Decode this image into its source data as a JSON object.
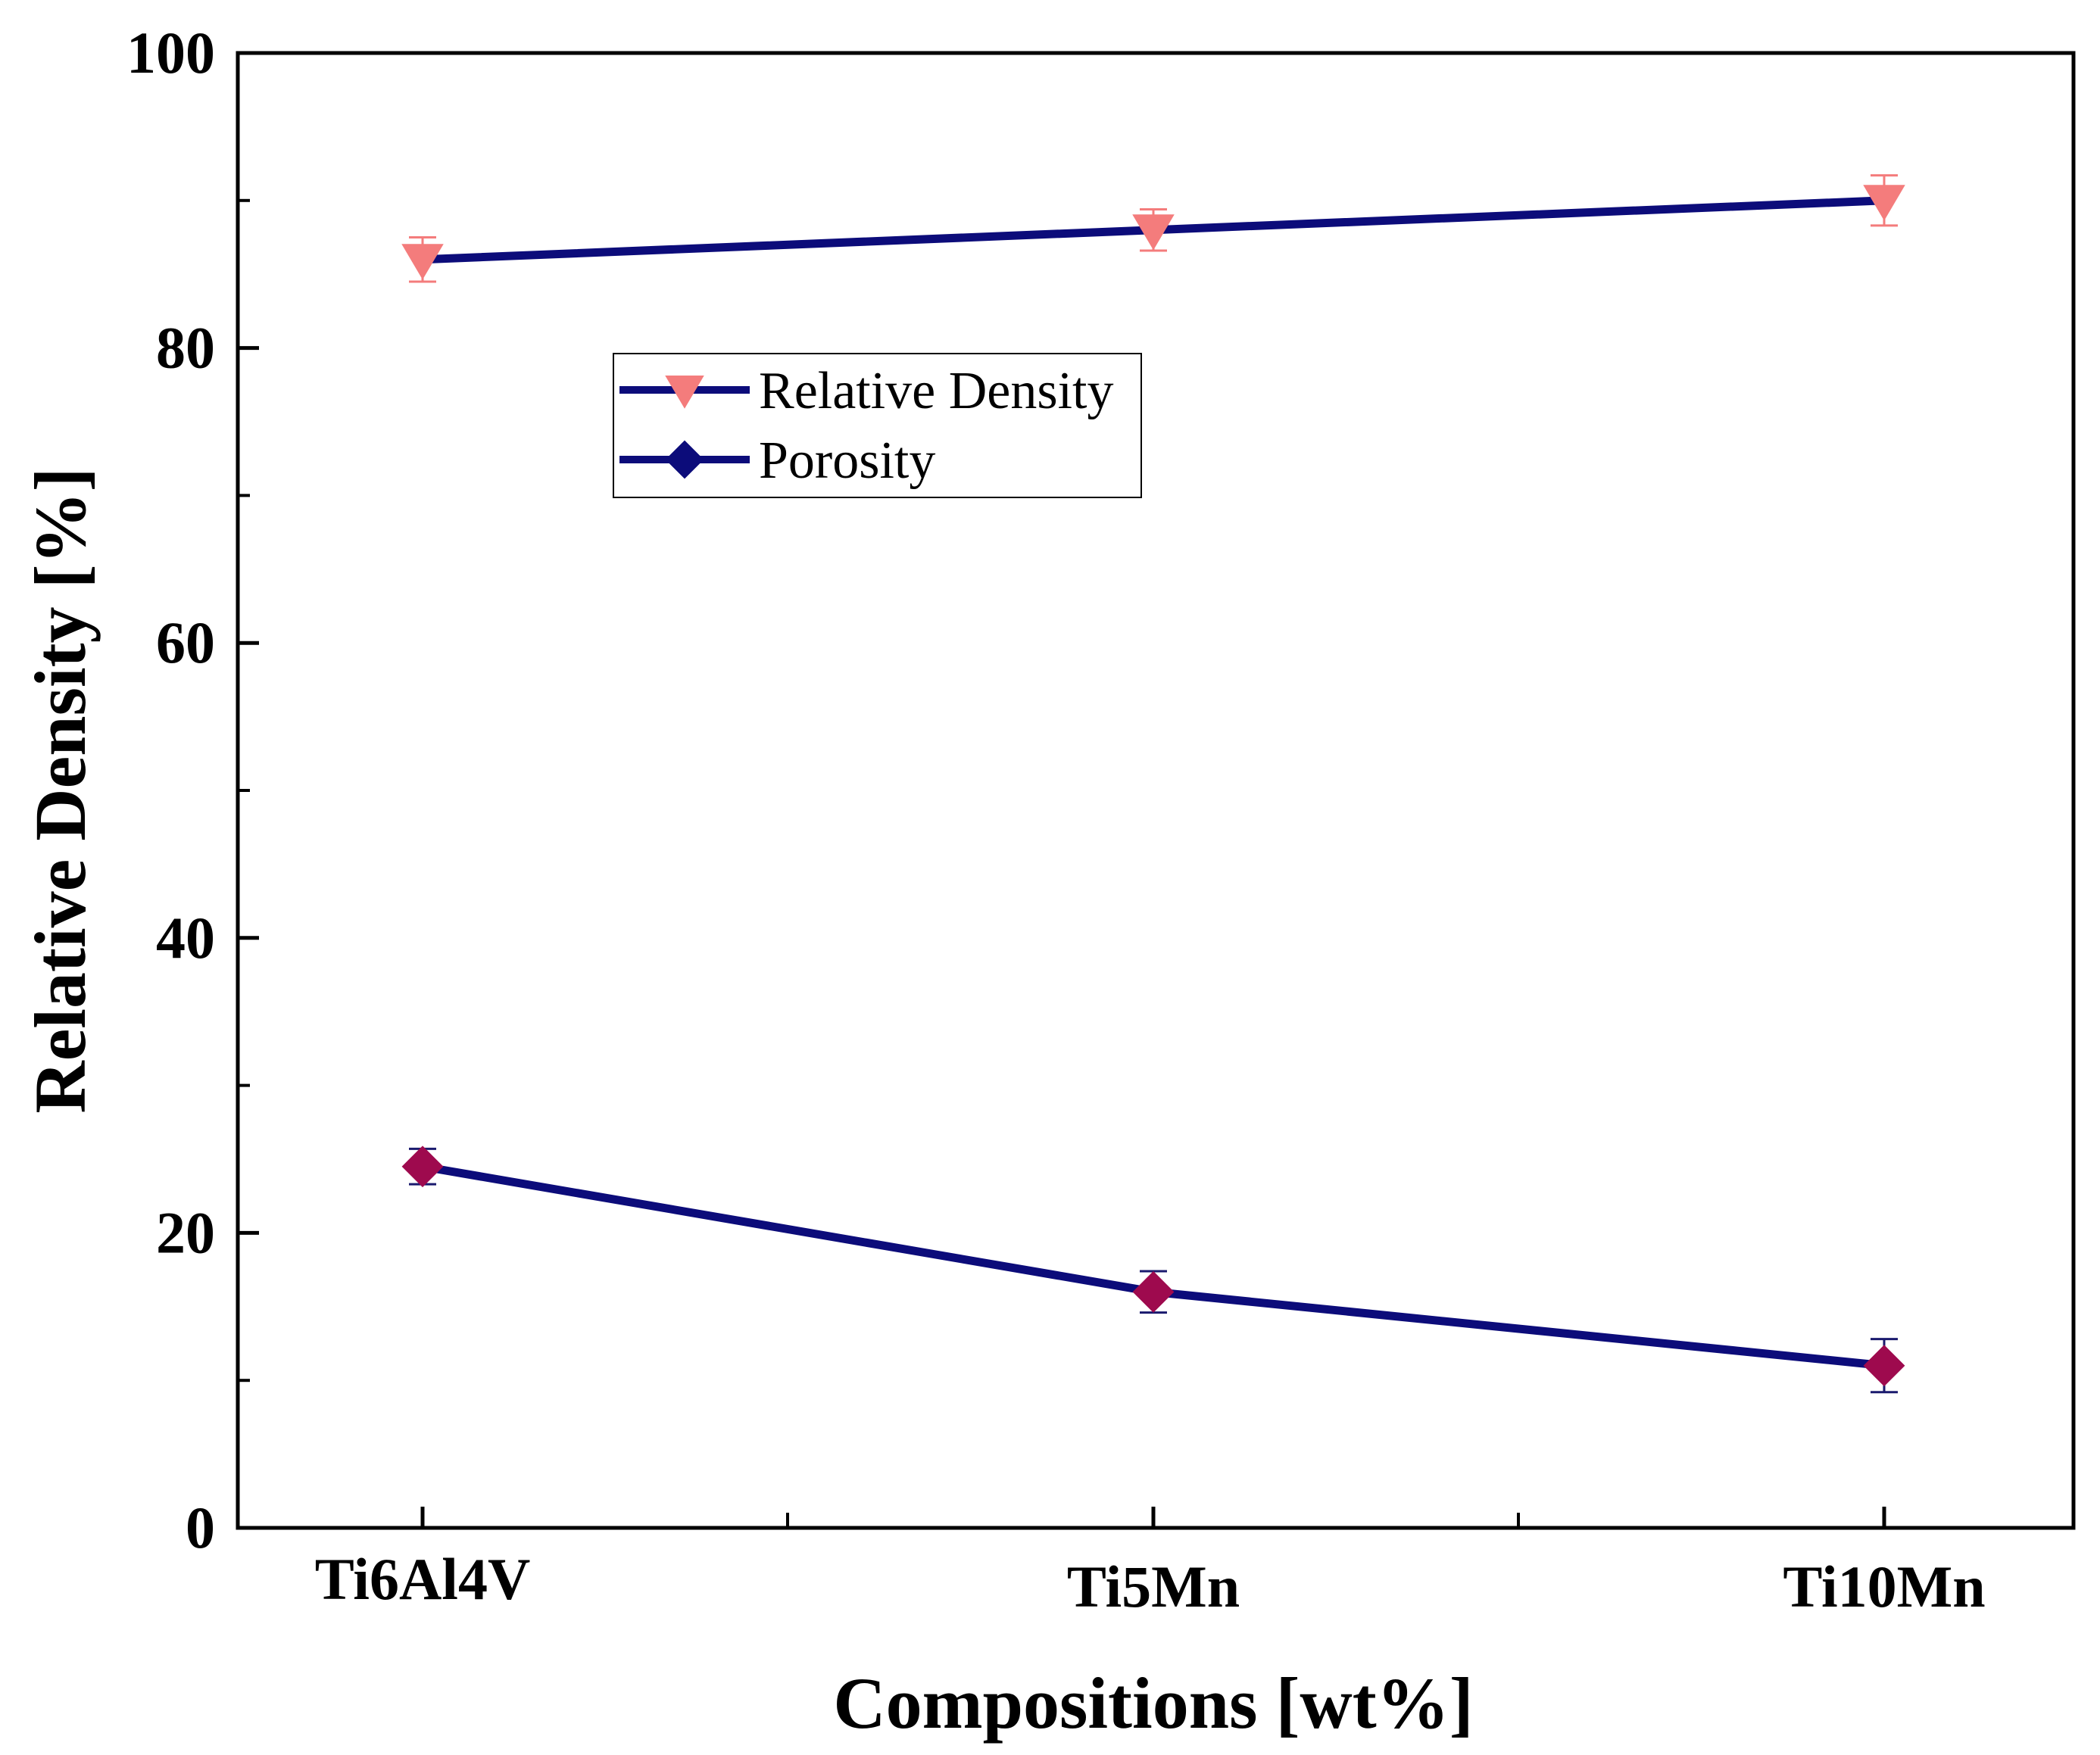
{
  "chart_data": {
    "type": "line",
    "title": "",
    "xlabel": "Compositions [wt%]",
    "ylabel": "Relative Density [%]",
    "categories": [
      "Ti6Al4V",
      "Ti5Mn",
      "Ti10Mn"
    ],
    "ylim": [
      0,
      100
    ],
    "yticks": [
      0,
      20,
      40,
      60,
      80,
      100
    ],
    "grid": false,
    "legend_position": "upper-left-center",
    "series": [
      {
        "name": "Relative Density",
        "values": [
          86,
          88,
          90
        ],
        "errors": [
          1.5,
          1.4,
          1.7
        ],
        "marker": "triangle-down",
        "line_color": "#0c0c7a",
        "marker_color": "#f47c7c"
      },
      {
        "name": "Porosity",
        "values": [
          24.5,
          16,
          11
        ],
        "errors": [
          1.2,
          1.4,
          1.8
        ],
        "marker": "diamond",
        "line_color": "#0c0c7a",
        "marker_color": "#9e0a4e"
      }
    ]
  }
}
